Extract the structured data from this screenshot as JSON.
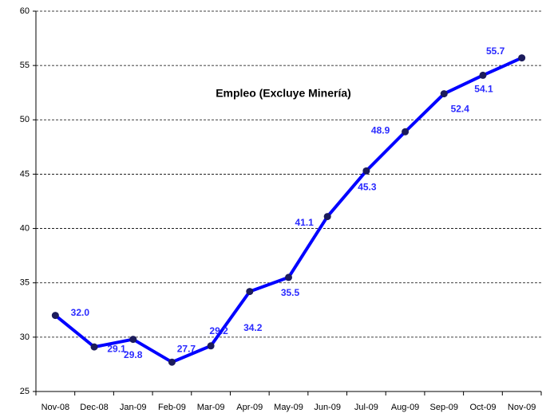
{
  "chart_data": {
    "type": "line",
    "title": "Empleo (Excluye Minería)",
    "categories": [
      "Nov-08",
      "Dec-08",
      "Jan-09",
      "Feb-09",
      "Mar-09",
      "Apr-09",
      "May-09",
      "Jun-09",
      "Jul-09",
      "Aug-09",
      "Sep-09",
      "Oct-09",
      "Nov-09"
    ],
    "series": [
      {
        "color": "#0000ff",
        "marker_color": "#1c1c5c",
        "values": [
          32.0,
          29.1,
          29.8,
          27.7,
          29.2,
          34.2,
          35.5,
          41.1,
          45.3,
          48.9,
          52.4,
          54.1,
          55.7
        ],
        "value_labels": [
          "32.0",
          "29.1",
          "29.8",
          "27.7",
          "29.2",
          "34.2",
          "35.5",
          "41.1",
          "45.3",
          "48.9",
          "52.4",
          "54.1",
          "55.7"
        ]
      }
    ],
    "ylim": [
      25,
      60
    ],
    "yticks": [
      25,
      30,
      35,
      40,
      45,
      50,
      55,
      60
    ],
    "grid": true
  }
}
